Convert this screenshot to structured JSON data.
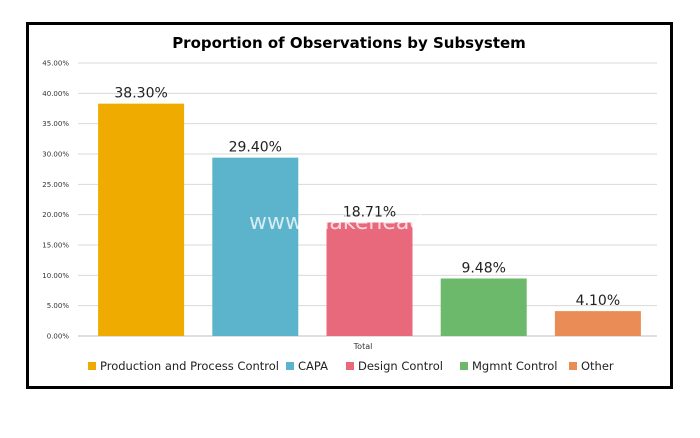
{
  "chart_data": {
    "type": "bar",
    "title": "Proportion of Observations by Subsystem",
    "categories": [
      "Total"
    ],
    "xlabel": "",
    "ylabel": "",
    "ylim": [
      0,
      45
    ],
    "yticks": [
      "0.00%",
      "5.00%",
      "10.00%",
      "15.00%",
      "20.00%",
      "25.00%",
      "30.00%",
      "35.00%",
      "40.00%",
      "45.00%"
    ],
    "grid": true,
    "legend_position": "bottom",
    "series": [
      {
        "name": "Production and Process Control",
        "values": [
          38.3
        ],
        "label": "38.30%",
        "color": "#F0AB00"
      },
      {
        "name": "CAPA",
        "values": [
          29.4
        ],
        "label": "29.40%",
        "color": "#5BB4CC"
      },
      {
        "name": "Design Control",
        "values": [
          18.71
        ],
        "label": "18.71%",
        "color": "#E8697B"
      },
      {
        "name": "Mgmnt Control",
        "values": [
          9.48
        ],
        "label": "9.48%",
        "color": "#6DB96B"
      },
      {
        "name": "Other",
        "values": [
          4.1
        ],
        "label": "4.10%",
        "color": "#EA8C55"
      }
    ],
    "watermark": "www.makeheadway.com"
  }
}
